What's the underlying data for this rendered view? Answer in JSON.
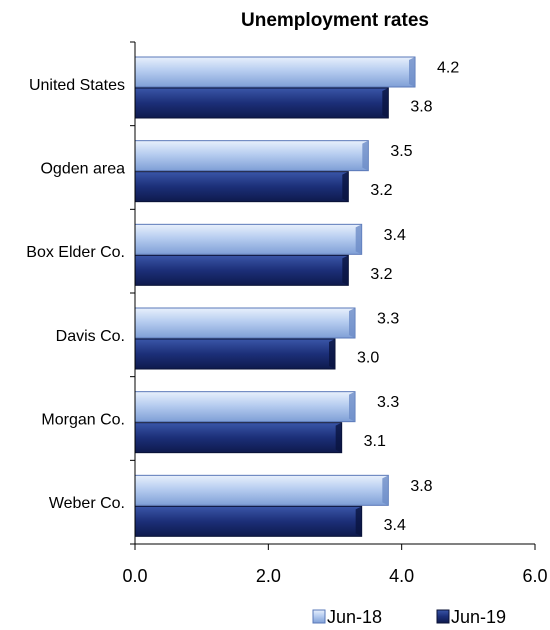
{
  "chart_data": {
    "type": "bar",
    "orientation": "horizontal",
    "title": "Unemployment rates",
    "categories": [
      "United States",
      "Ogden area",
      "Box Elder Co.",
      "Davis Co.",
      "Morgan Co.",
      "Weber Co."
    ],
    "series": [
      {
        "name": "Jun-18",
        "values": [
          4.2,
          3.5,
          3.4,
          3.3,
          3.3,
          3.8
        ],
        "color": "#9db9e8"
      },
      {
        "name": "Jun-19",
        "values": [
          3.8,
          3.2,
          3.2,
          3.0,
          3.1,
          3.4
        ],
        "color": "#1a2a6c"
      }
    ],
    "data_labels": {
      "Jun-18": [
        "4.2",
        "3.5",
        "3.4",
        "3.3",
        "3.3",
        "3.8"
      ],
      "Jun-19": [
        "3.8",
        "3.2",
        "3.2",
        "3.0",
        "3.1",
        "3.4"
      ]
    },
    "xlim": [
      0,
      6
    ],
    "x_ticks": [
      0,
      2,
      4,
      6
    ],
    "x_tick_labels": [
      "0.0",
      "2.0",
      "4.0",
      "6.0"
    ],
    "grid": false,
    "legend_position": "bottom-right"
  }
}
